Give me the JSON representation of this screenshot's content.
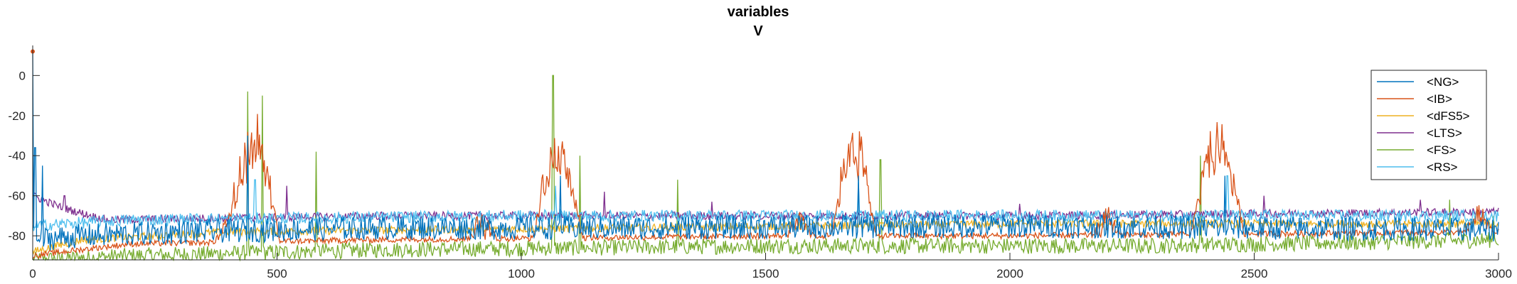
{
  "chart_data": {
    "type": "line",
    "title": "variables",
    "subtitle": "V",
    "xlabel": "",
    "ylabel": "",
    "xlim": [
      0,
      3000
    ],
    "ylim": [
      -92,
      15
    ],
    "xticks": [
      0,
      500,
      1000,
      1500,
      2000,
      2500,
      3000
    ],
    "yticks": [
      0,
      -20,
      -40,
      -60,
      -80
    ],
    "grid": false,
    "legend_position": "top-right",
    "series": [
      {
        "name": "<NG>",
        "color": "#0072BD",
        "baseline": -71,
        "noise": 6,
        "points": [
          [
            0,
            -82
          ],
          [
            100,
            -80
          ],
          [
            300,
            -78
          ],
          [
            700,
            -76
          ],
          [
            1200,
            -76
          ],
          [
            2000,
            -75
          ],
          [
            3000,
            -77
          ]
        ],
        "spikes": [
          [
            0,
            12
          ],
          [
            5,
            -36
          ],
          [
            20,
            -45
          ],
          [
            440,
            -30
          ],
          [
            1080,
            -50
          ],
          [
            1690,
            -50
          ],
          [
            2440,
            -50
          ]
        ]
      },
      {
        "name": "<IB>",
        "color": "#D95319",
        "baseline": -82,
        "noise": 1.5,
        "points": [
          [
            0,
            -90
          ],
          [
            60,
            -88
          ],
          [
            200,
            -84
          ],
          [
            700,
            -82
          ],
          [
            1500,
            -80
          ],
          [
            2000,
            -80
          ],
          [
            3000,
            -78
          ]
        ],
        "bursts": [
          [
            450,
            -25,
            55
          ],
          [
            1075,
            -30,
            50
          ],
          [
            1680,
            -27,
            45
          ],
          [
            2425,
            -30,
            55
          ]
        ],
        "extra": [
          [
            400,
            -68
          ],
          [
            920,
            -63
          ],
          [
            1570,
            -67
          ],
          [
            2200,
            -64
          ],
          [
            2960,
            -62
          ]
        ]
      },
      {
        "name": "<dFS5>",
        "color": "#EDB120",
        "baseline": -77,
        "noise": 2,
        "points": [
          [
            0,
            -88
          ],
          [
            100,
            -82
          ],
          [
            400,
            -78
          ],
          [
            1200,
            -76
          ],
          [
            2000,
            -74
          ],
          [
            3000,
            -74
          ]
        ]
      },
      {
        "name": "<LTS>",
        "color": "#7E2F8E",
        "baseline": -71,
        "noise": 2,
        "points": [
          [
            0,
            -60
          ],
          [
            60,
            -66
          ],
          [
            150,
            -72
          ],
          [
            700,
            -70
          ],
          [
            2000,
            -70
          ],
          [
            3000,
            -68
          ]
        ],
        "spikes": [
          [
            65,
            -60
          ],
          [
            520,
            -55
          ],
          [
            1170,
            -58
          ],
          [
            1390,
            -63
          ],
          [
            1700,
            -68
          ],
          [
            2020,
            -64
          ],
          [
            2520,
            -60
          ],
          [
            2840,
            -62
          ]
        ]
      },
      {
        "name": "<FS>",
        "color": "#77AC30",
        "baseline": -85,
        "noise": 4,
        "points": [
          [
            0,
            -92
          ],
          [
            200,
            -90
          ],
          [
            700,
            -87
          ],
          [
            1500,
            -85
          ],
          [
            2300,
            -85
          ],
          [
            3000,
            -82
          ]
        ],
        "spikes": [
          [
            440,
            -8
          ],
          [
            470,
            -10
          ],
          [
            580,
            -38
          ],
          [
            1065,
            0
          ],
          [
            1120,
            -40
          ],
          [
            1320,
            -52
          ],
          [
            1735,
            -42
          ],
          [
            2390,
            -40
          ],
          [
            2900,
            -62
          ],
          [
            2990,
            -70
          ]
        ]
      },
      {
        "name": "<RS>",
        "color": "#4DBEEE",
        "baseline": -70,
        "noise": 3,
        "points": [
          [
            0,
            -75
          ],
          [
            200,
            -72
          ],
          [
            1000,
            -70
          ],
          [
            2000,
            -70
          ],
          [
            3000,
            -70
          ]
        ],
        "spikes": [
          [
            455,
            -52
          ],
          [
            1070,
            -55
          ],
          [
            1690,
            -52
          ],
          [
            2445,
            -50
          ]
        ]
      }
    ]
  }
}
